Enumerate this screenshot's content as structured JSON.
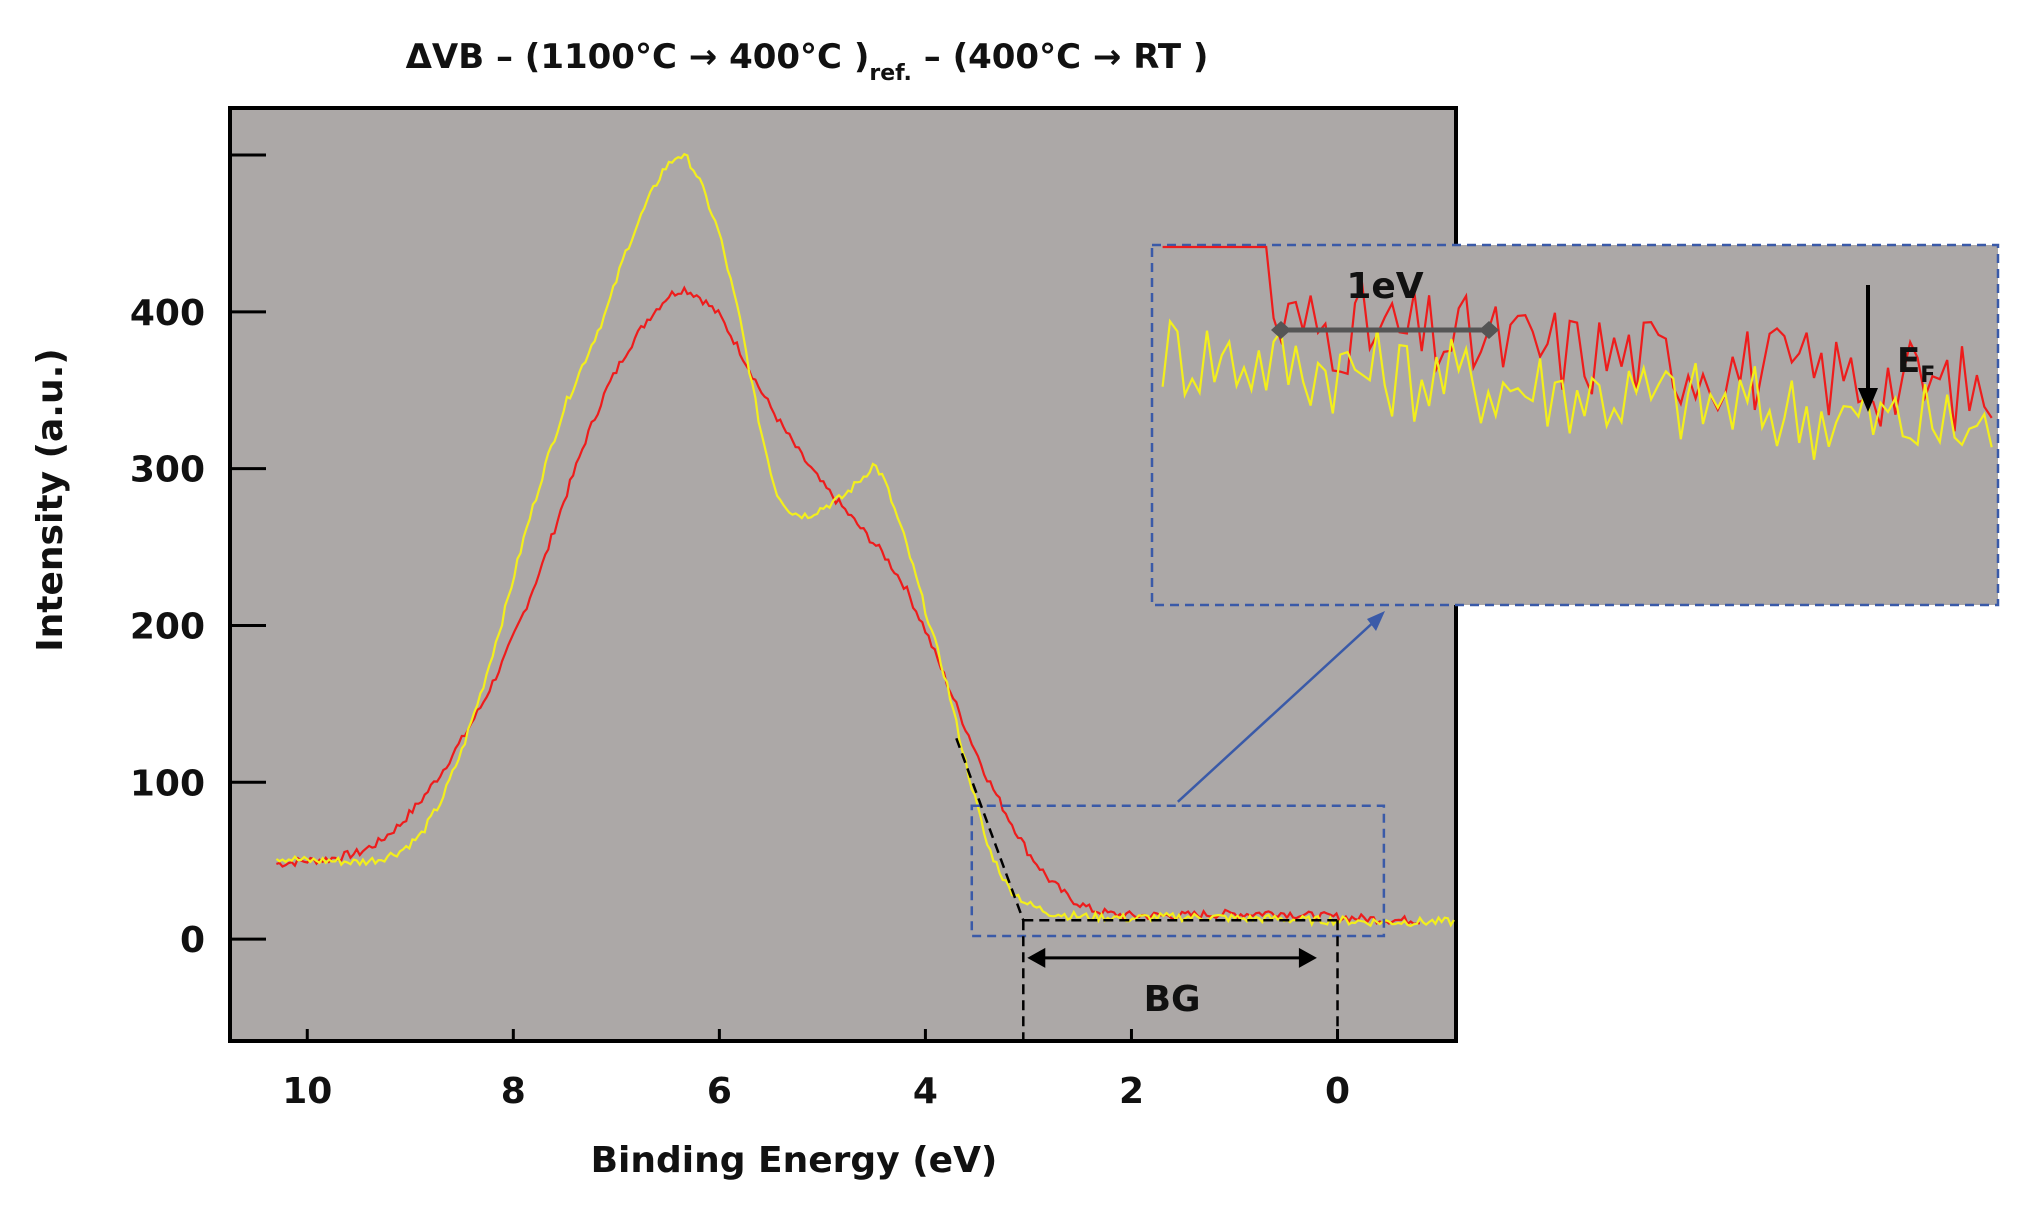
{
  "chart_data": {
    "type": "line",
    "title": {
      "part1": "ΔVB – (1100°C → 400°C )",
      "subscript": "ref.",
      "part2": " – (400°C → RT )"
    },
    "xlabel": "Binding Energy (eV)",
    "ylabel": "Intensity (a.u.)",
    "xlim": [
      10.75,
      -1.15
    ],
    "ylim": [
      -65,
      530
    ],
    "x_reversed": true,
    "x_ticks": [
      10,
      8,
      6,
      4,
      2,
      0
    ],
    "x_tick_labels": [
      "10",
      "8",
      "6",
      "4",
      "2",
      "0"
    ],
    "y_ticks": [
      0,
      100,
      200,
      300,
      400,
      500
    ],
    "y_tick_labels": [
      "0",
      "100",
      "200",
      "300",
      "400",
      ""
    ],
    "plot_background": "#aca8a7",
    "series": [
      {
        "name": "red",
        "color": "#ee1c1c",
        "x": [
          10.3,
          10.0,
          9.8,
          9.5,
          9.3,
          9.1,
          8.9,
          8.7,
          8.5,
          8.3,
          8.1,
          7.9,
          7.7,
          7.5,
          7.3,
          7.1,
          6.9,
          6.7,
          6.5,
          6.35,
          6.2,
          6.0,
          5.8,
          5.6,
          5.4,
          5.2,
          5.0,
          4.8,
          4.6,
          4.4,
          4.2,
          4.0,
          3.8,
          3.6,
          3.4,
          3.2,
          3.0,
          2.8,
          2.6,
          2.4,
          2.2,
          2.0,
          1.8,
          1.5,
          1.2,
          0.9,
          0.6,
          0.3,
          0.0,
          -0.3,
          -0.6,
          -0.8
        ],
        "y": [
          48,
          50,
          51,
          55,
          62,
          73,
          88,
          106,
          127,
          150,
          177,
          208,
          242,
          281,
          318,
          350,
          375,
          395,
          410,
          415,
          410,
          398,
          375,
          350,
          328,
          308,
          290,
          275,
          260,
          245,
          225,
          197,
          165,
          133,
          103,
          78,
          55,
          38,
          26,
          19,
          16,
          15,
          15,
          15,
          16,
          16,
          17,
          15,
          14,
          13,
          12,
          12
        ]
      },
      {
        "name": "yellow",
        "color": "#f3ef1c",
        "x": [
          10.3,
          10.0,
          9.8,
          9.5,
          9.3,
          9.1,
          8.9,
          8.7,
          8.5,
          8.3,
          8.1,
          7.9,
          7.7,
          7.5,
          7.3,
          7.1,
          6.9,
          6.7,
          6.55,
          6.4,
          6.3,
          6.2,
          6.0,
          5.8,
          5.6,
          5.45,
          5.3,
          5.15,
          5.0,
          4.8,
          4.6,
          4.5,
          4.4,
          4.2,
          4.0,
          3.8,
          3.6,
          3.4,
          3.2,
          3.0,
          2.8,
          2.6,
          2.4,
          2.2,
          2.0,
          1.8,
          1.5,
          1.2,
          0.9,
          0.6,
          0.3,
          0.0,
          -0.3,
          -0.6,
          -1.15
        ],
        "y": [
          52,
          50,
          50,
          49,
          51,
          56,
          66,
          88,
          120,
          160,
          205,
          255,
          300,
          340,
          370,
          400,
          440,
          470,
          490,
          500,
          497,
          485,
          450,
          395,
          325,
          285,
          272,
          270,
          275,
          282,
          295,
          303,
          293,
          255,
          210,
          165,
          110,
          60,
          33,
          22,
          17,
          15,
          14,
          14,
          13,
          14,
          14,
          14,
          13,
          13,
          12,
          12,
          11,
          11,
          11
        ]
      }
    ],
    "annotations": {
      "bg_label": "BG",
      "bg_arrow_from_eV": 3.05,
      "bg_arrow_to_eV": 0.2,
      "band_edge_eV": 3.05,
      "fermi_edge_eV": 0.0,
      "tangent_from": {
        "x": 3.7,
        "y": 128
      },
      "tangent_to": {
        "x": 3.05,
        "y": 12
      },
      "baseline_y": 12,
      "zoom_region": {
        "x_from": 3.55,
        "x_to": -0.45,
        "y_from": 2,
        "y_to": 85
      },
      "inset": {
        "scale_label": "1eV",
        "fermi_label_main": "E",
        "fermi_label_sub": "F"
      }
    }
  }
}
